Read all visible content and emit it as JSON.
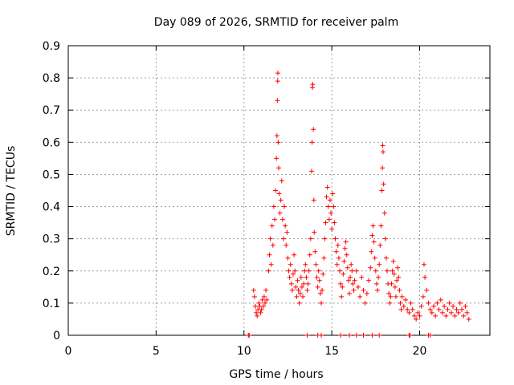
{
  "chart_data": {
    "type": "scatter",
    "title": "Day 089 of 2026, SRMTID for receiver palm",
    "xlabel": "GPS time / hours",
    "ylabel": "SRMTID / TECUs",
    "xlim": [
      0,
      24
    ],
    "ylim": [
      0,
      0.9
    ],
    "xticks": [
      0,
      5,
      10,
      15,
      20
    ],
    "yticks": [
      0,
      0.1,
      0.2,
      0.3,
      0.4,
      0.5,
      0.6,
      0.7,
      0.8,
      0.9
    ],
    "xtick_labels": [
      "0",
      "5",
      "10",
      "15",
      "20"
    ],
    "ytick_labels": [
      "0",
      "0.1",
      "0.2",
      "0.3",
      "0.4",
      "0.5",
      "0.6",
      "0.7",
      "0.8",
      "0.9"
    ],
    "grid": true,
    "marker": "+",
    "color": "#ff0000",
    "series": [
      {
        "name": "SRMTID",
        "points": [
          [
            10.3,
            0.0
          ],
          [
            10.55,
            0.14
          ],
          [
            10.6,
            0.12
          ],
          [
            10.65,
            0.09
          ],
          [
            10.7,
            0.07
          ],
          [
            10.75,
            0.06
          ],
          [
            10.8,
            0.08
          ],
          [
            10.85,
            0.1
          ],
          [
            10.9,
            0.09
          ],
          [
            10.95,
            0.07
          ],
          [
            11.0,
            0.08
          ],
          [
            11.05,
            0.11
          ],
          [
            11.1,
            0.09
          ],
          [
            11.15,
            0.12
          ],
          [
            11.2,
            0.1
          ],
          [
            11.25,
            0.14
          ],
          [
            11.3,
            0.11
          ],
          [
            11.4,
            0.2
          ],
          [
            11.45,
            0.25
          ],
          [
            11.5,
            0.3
          ],
          [
            11.55,
            0.22
          ],
          [
            11.6,
            0.34
          ],
          [
            11.65,
            0.28
          ],
          [
            11.7,
            0.4
          ],
          [
            11.75,
            0.36
          ],
          [
            11.8,
            0.45
          ],
          [
            11.85,
            0.55
          ],
          [
            11.88,
            0.62
          ],
          [
            11.9,
            0.73
          ],
          [
            11.92,
            0.79
          ],
          [
            11.93,
            0.815
          ],
          [
            11.95,
            0.6
          ],
          [
            11.98,
            0.52
          ],
          [
            12.0,
            0.44
          ],
          [
            12.05,
            0.38
          ],
          [
            12.1,
            0.42
          ],
          [
            12.15,
            0.48
          ],
          [
            12.2,
            0.36
          ],
          [
            12.25,
            0.3
          ],
          [
            12.3,
            0.4
          ],
          [
            12.35,
            0.34
          ],
          [
            12.4,
            0.28
          ],
          [
            12.45,
            0.32
          ],
          [
            12.5,
            0.24
          ],
          [
            12.55,
            0.2
          ],
          [
            12.6,
            0.18
          ],
          [
            12.65,
            0.22
          ],
          [
            12.7,
            0.16
          ],
          [
            12.75,
            0.14
          ],
          [
            12.8,
            0.19
          ],
          [
            12.85,
            0.25
          ],
          [
            12.9,
            0.2
          ],
          [
            12.95,
            0.15
          ],
          [
            13.0,
            0.12
          ],
          [
            13.05,
            0.17
          ],
          [
            13.1,
            0.14
          ],
          [
            13.15,
            0.1
          ],
          [
            13.2,
            0.13
          ],
          [
            13.25,
            0.18
          ],
          [
            13.3,
            0.15
          ],
          [
            13.35,
            0.12
          ],
          [
            13.4,
            0.16
          ],
          [
            13.45,
            0.2
          ],
          [
            13.5,
            0.22
          ],
          [
            13.55,
            0.18
          ],
          [
            13.6,
            0.14
          ],
          [
            13.65,
            0.16
          ],
          [
            13.7,
            0.2
          ],
          [
            13.75,
            0.25
          ],
          [
            13.8,
            0.3
          ],
          [
            13.85,
            0.51
          ],
          [
            13.88,
            0.6
          ],
          [
            13.9,
            0.77
          ],
          [
            13.92,
            0.78
          ],
          [
            13.95,
            0.64
          ],
          [
            13.98,
            0.42
          ],
          [
            14.0,
            0.32
          ],
          [
            14.05,
            0.26
          ],
          [
            14.1,
            0.22
          ],
          [
            14.15,
            0.18
          ],
          [
            14.2,
            0.15
          ],
          [
            14.25,
            0.2
          ],
          [
            14.3,
            0.17
          ],
          [
            14.35,
            0.13
          ],
          [
            14.4,
            0.1
          ],
          [
            14.45,
            0.14
          ],
          [
            14.5,
            0.19
          ],
          [
            14.55,
            0.24
          ],
          [
            14.6,
            0.3
          ],
          [
            14.65,
            0.35
          ],
          [
            14.7,
            0.43
          ],
          [
            14.75,
            0.46
          ],
          [
            14.8,
            0.4
          ],
          [
            14.85,
            0.36
          ],
          [
            14.9,
            0.42
          ],
          [
            14.95,
            0.38
          ],
          [
            15.0,
            0.33
          ],
          [
            15.05,
            0.44
          ],
          [
            15.1,
            0.4
          ],
          [
            15.15,
            0.35
          ],
          [
            15.2,
            0.3
          ],
          [
            15.25,
            0.26
          ],
          [
            15.3,
            0.22
          ],
          [
            15.35,
            0.28
          ],
          [
            15.4,
            0.24
          ],
          [
            15.45,
            0.2
          ],
          [
            15.5,
            0.16
          ],
          [
            15.55,
            0.12
          ],
          [
            15.6,
            0.15
          ],
          [
            15.65,
            0.19
          ],
          [
            15.7,
            0.23
          ],
          [
            15.75,
            0.27
          ],
          [
            15.8,
            0.29
          ],
          [
            15.85,
            0.25
          ],
          [
            15.9,
            0.21
          ],
          [
            15.95,
            0.17
          ],
          [
            16.0,
            0.13
          ],
          [
            16.05,
            0.18
          ],
          [
            16.1,
            0.22
          ],
          [
            16.15,
            0.2
          ],
          [
            16.2,
            0.16
          ],
          [
            16.25,
            0.14
          ],
          [
            16.3,
            0.17
          ],
          [
            16.4,
            0.2
          ],
          [
            16.5,
            0.15
          ],
          [
            16.6,
            0.12
          ],
          [
            16.7,
            0.18
          ],
          [
            16.8,
            0.14
          ],
          [
            16.9,
            0.1
          ],
          [
            17.0,
            0.13
          ],
          [
            17.1,
            0.17
          ],
          [
            17.2,
            0.21
          ],
          [
            17.25,
            0.26
          ],
          [
            17.3,
            0.31
          ],
          [
            17.35,
            0.34
          ],
          [
            17.4,
            0.29
          ],
          [
            17.45,
            0.24
          ],
          [
            17.5,
            0.2
          ],
          [
            17.55,
            0.16
          ],
          [
            17.6,
            0.14
          ],
          [
            17.65,
            0.18
          ],
          [
            17.7,
            0.22
          ],
          [
            17.75,
            0.28
          ],
          [
            17.8,
            0.34
          ],
          [
            17.85,
            0.45
          ],
          [
            17.88,
            0.52
          ],
          [
            17.9,
            0.59
          ],
          [
            17.92,
            0.57
          ],
          [
            17.95,
            0.47
          ],
          [
            18.0,
            0.38
          ],
          [
            18.05,
            0.3
          ],
          [
            18.1,
            0.24
          ],
          [
            18.15,
            0.2
          ],
          [
            18.2,
            0.16
          ],
          [
            18.25,
            0.13
          ],
          [
            18.3,
            0.1
          ],
          [
            18.35,
            0.12
          ],
          [
            18.4,
            0.16
          ],
          [
            18.45,
            0.2
          ],
          [
            18.5,
            0.23
          ],
          [
            18.55,
            0.19
          ],
          [
            18.6,
            0.15
          ],
          [
            18.65,
            0.12
          ],
          [
            18.7,
            0.17
          ],
          [
            18.75,
            0.21
          ],
          [
            18.8,
            0.18
          ],
          [
            18.85,
            0.14
          ],
          [
            18.9,
            0.1
          ],
          [
            18.95,
            0.08
          ],
          [
            19.0,
            0.12
          ],
          [
            19.1,
            0.09
          ],
          [
            19.2,
            0.11
          ],
          [
            19.3,
            0.08
          ],
          [
            19.4,
            0.07
          ],
          [
            19.5,
            0.1
          ],
          [
            19.6,
            0.08
          ],
          [
            19.7,
            0.06
          ],
          [
            19.8,
            0.05
          ],
          [
            19.9,
            0.07
          ],
          [
            20.0,
            0.06
          ],
          [
            20.1,
            0.09
          ],
          [
            20.2,
            0.12
          ],
          [
            20.25,
            0.22
          ],
          [
            20.3,
            0.18
          ],
          [
            20.4,
            0.14
          ],
          [
            20.5,
            0.1
          ],
          [
            20.6,
            0.08
          ],
          [
            20.7,
            0.07
          ],
          [
            20.8,
            0.09
          ],
          [
            20.9,
            0.06
          ],
          [
            21.0,
            0.1
          ],
          [
            21.1,
            0.08
          ],
          [
            21.2,
            0.11
          ],
          [
            21.3,
            0.07
          ],
          [
            21.4,
            0.09
          ],
          [
            21.5,
            0.06
          ],
          [
            21.6,
            0.08
          ],
          [
            21.7,
            0.1
          ],
          [
            21.8,
            0.07
          ],
          [
            21.9,
            0.09
          ],
          [
            22.0,
            0.06
          ],
          [
            22.1,
            0.08
          ],
          [
            22.2,
            0.07
          ],
          [
            22.3,
            0.1
          ],
          [
            22.4,
            0.08
          ],
          [
            22.5,
            0.06
          ],
          [
            22.6,
            0.09
          ],
          [
            22.7,
            0.07
          ],
          [
            22.8,
            0.05
          ],
          [
            10.25,
            0.0
          ],
          [
            13.6,
            0.0
          ],
          [
            14.2,
            0.0
          ],
          [
            14.4,
            0.0
          ],
          [
            15.5,
            0.0
          ],
          [
            16.0,
            0.0
          ],
          [
            16.4,
            0.0
          ],
          [
            16.8,
            0.0
          ],
          [
            17.3,
            0.0
          ],
          [
            17.7,
            0.0
          ],
          [
            19.4,
            0.0
          ],
          [
            19.45,
            0.0
          ],
          [
            20.5,
            0.0
          ],
          [
            20.6,
            0.0
          ]
        ]
      }
    ]
  }
}
